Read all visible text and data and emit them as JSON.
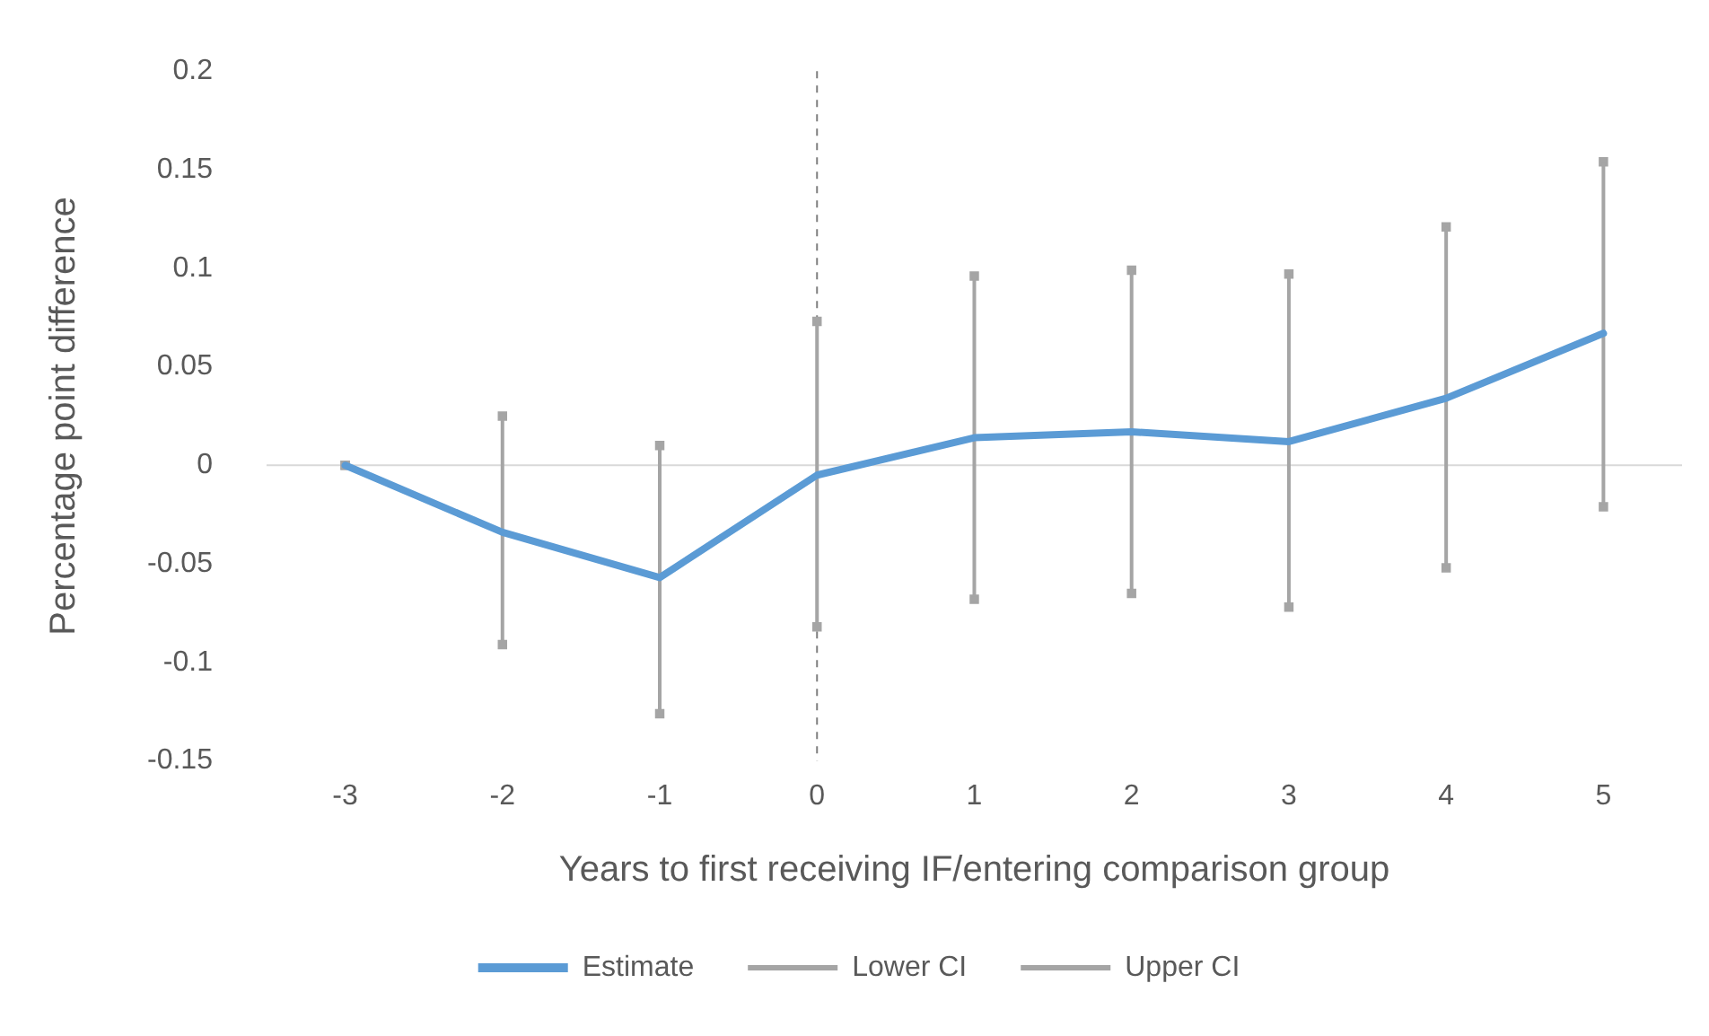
{
  "chart_data": {
    "type": "line",
    "xlabel": "Years to first receiving IF/entering comparison group",
    "ylabel": "Percentage point difference",
    "categories": [
      "-3",
      "-2",
      "-1",
      "0",
      "1",
      "2",
      "3",
      "4",
      "5"
    ],
    "series": [
      {
        "name": "Estimate",
        "color": "#5b9bd5",
        "marker": "none",
        "values": [
          0,
          -0.034,
          -0.057,
          -0.005,
          0.014,
          0.017,
          0.012,
          0.034,
          0.067
        ]
      },
      {
        "name": "Lower CI",
        "type": "scatter",
        "color": "#a5a5a5",
        "marker": "square",
        "values": [
          0,
          -0.091,
          -0.126,
          -0.082,
          -0.068,
          -0.065,
          -0.072,
          -0.052,
          -0.021
        ]
      },
      {
        "name": "Upper CI",
        "type": "scatter",
        "color": "#a5a5a5",
        "marker": "square",
        "values": [
          0,
          0.025,
          0.01,
          0.073,
          0.096,
          0.099,
          0.097,
          0.121,
          0.154
        ]
      }
    ],
    "ylim": [
      -0.15,
      0.2
    ],
    "yticks": [
      -0.15,
      -0.1,
      -0.05,
      0,
      0.05,
      0.1,
      0.15,
      0.2
    ],
    "ref_lines": [
      {
        "axis": "x",
        "value": "0",
        "color": "#7f7f7f",
        "line_style": "dashed"
      }
    ],
    "grid": false,
    "legend": "bottom"
  }
}
